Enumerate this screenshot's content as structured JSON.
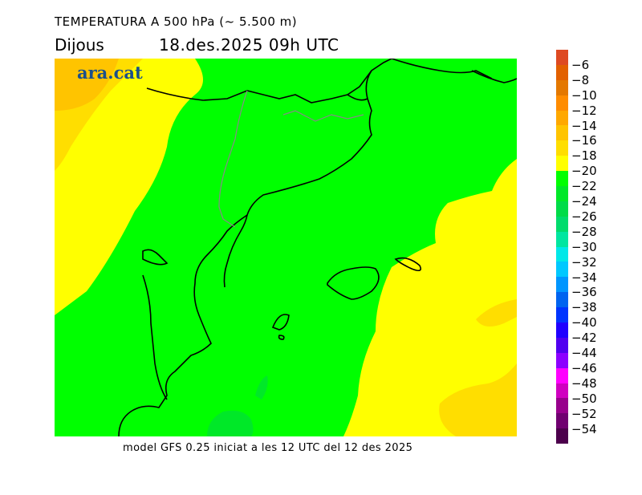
{
  "header": {
    "title": "TEMPERATURA A 500 hPa (~ 5.500 m)",
    "day": "Dijous",
    "datetime": "18.des.2025 09h UTC"
  },
  "logo": "ara.cat",
  "footer": "model GFS 0.25 iniciat a les 12 UTC del 12 des 2025",
  "colorbar": {
    "labels": [
      "−6",
      "−8",
      "−10",
      "−12",
      "−14",
      "−16",
      "−18",
      "−20",
      "−22",
      "−24",
      "−26",
      "−28",
      "−30",
      "−32",
      "−34",
      "−36",
      "−38",
      "−40",
      "−42",
      "−44",
      "−46",
      "−48",
      "−50",
      "−52",
      "−54"
    ],
    "colors": [
      "#de4a22",
      "#e26000",
      "#e47800",
      "#ff8c00",
      "#ffa800",
      "#ffc400",
      "#ffde00",
      "#ffff00",
      "#00ff00",
      "#00e828",
      "#00dc48",
      "#00dc6c",
      "#00e6a0",
      "#00e8e8",
      "#00c8ff",
      "#0096ff",
      "#0064f0",
      "#0034ff",
      "#2000ff",
      "#5000f0",
      "#8c00ff",
      "#ff00ff",
      "#d000c0",
      "#98008c",
      "#700070",
      "#4c004c"
    ]
  }
}
